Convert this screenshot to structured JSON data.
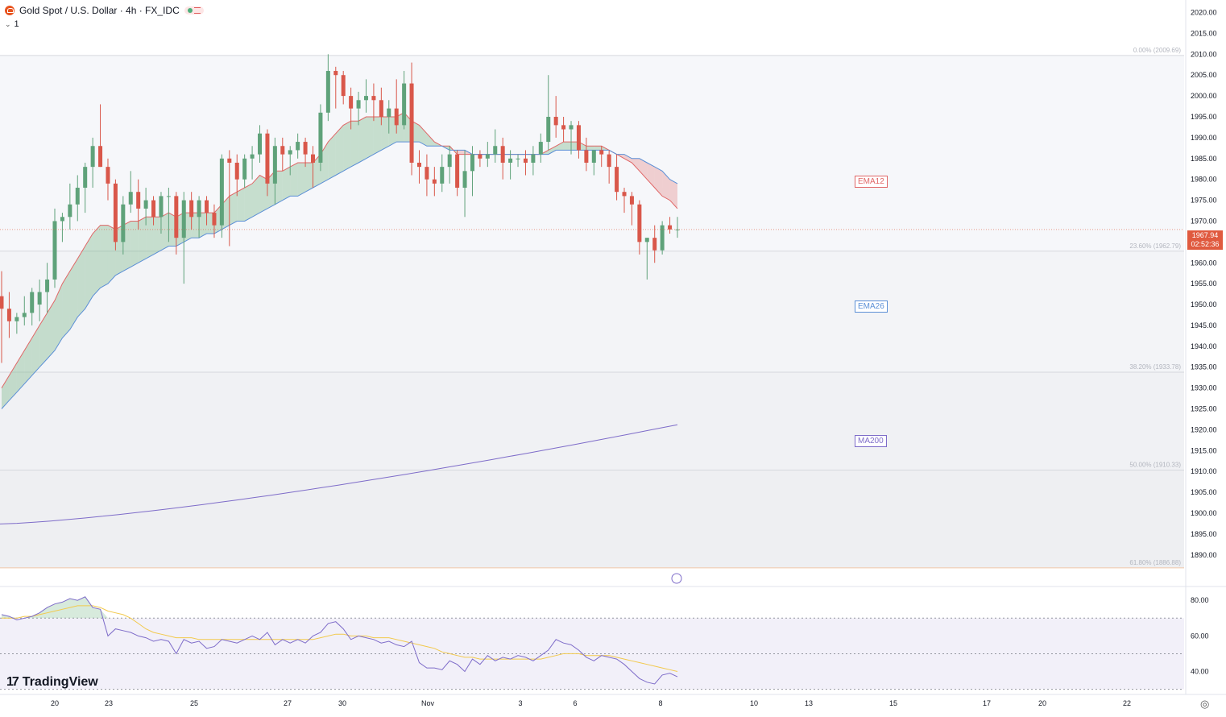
{
  "header": {
    "symbol_title": "Gold Spot / U.S. Dollar · 4h · FX_IDC",
    "indicator_count": "1"
  },
  "colors": {
    "up": "#5fa27a",
    "down": "#d9574a",
    "ema12": "#e06666",
    "ema26": "#5b8fd6",
    "ma200": "#7e6cc9",
    "rsi": "#7e6cc9",
    "rsi_ma": "#f2c94c",
    "current_price_bg": "#e05a3f"
  },
  "tags": {
    "ema12": "EMA12",
    "ema26": "EMA26",
    "ma200": "MA200"
  },
  "price_tag": {
    "price": "1967.94",
    "countdown": "02:52:36"
  },
  "branding": "TradingView",
  "chart_data": {
    "type": "candlestick",
    "price_axis": {
      "ylim": [
        1883,
        2023
      ],
      "ticks": [
        "2020.00",
        "2015.00",
        "2010.00",
        "2005.00",
        "2000.00",
        "1995.00",
        "1990.00",
        "1985.00",
        "1980.00",
        "1975.00",
        "1970.00",
        "1965.00",
        "1960.00",
        "1955.00",
        "1950.00",
        "1945.00",
        "1940.00",
        "1935.00",
        "1930.00",
        "1925.00",
        "1920.00",
        "1915.00",
        "1910.00",
        "1905.00",
        "1900.00",
        "1895.00",
        "1890.00"
      ]
    },
    "time_axis": {
      "labels": [
        "20",
        "23",
        "25",
        "27",
        "30",
        "Nov",
        "3",
        "6",
        "8",
        "10",
        "13",
        "15",
        "17",
        "20",
        "22"
      ]
    },
    "fibonacci": [
      {
        "label": "0.00% (2009.69)",
        "price": 2009.69
      },
      {
        "label": "23.60% (1962.79)",
        "price": 1962.79
      },
      {
        "label": "38.20% (1933.78)",
        "price": 1933.78
      },
      {
        "label": "50.00% (1910.33)",
        "price": 1910.33
      },
      {
        "label": "61.80% (1886.88)",
        "price": 1886.88
      }
    ],
    "candles": [
      [
        1952,
        1958,
        1936,
        1949
      ],
      [
        1949,
        1953,
        1942,
        1946
      ],
      [
        1946,
        1948,
        1943,
        1947
      ],
      [
        1947,
        1952,
        1945,
        1948
      ],
      [
        1948,
        1954,
        1945,
        1953
      ],
      [
        1950,
        1956,
        1946,
        1953
      ],
      [
        1953,
        1960,
        1948,
        1956
      ],
      [
        1956,
        1973,
        1954,
        1970
      ],
      [
        1970,
        1972,
        1965,
        1971
      ],
      [
        1971,
        1979,
        1968,
        1974
      ],
      [
        1974,
        1981,
        1970,
        1978
      ],
      [
        1978,
        1984,
        1972,
        1983
      ],
      [
        1983,
        1990,
        1978,
        1988
      ],
      [
        1988,
        1998,
        1983,
        1983
      ],
      [
        1983,
        1985,
        1975,
        1979
      ],
      [
        1979,
        1980,
        1963,
        1965
      ],
      [
        1965,
        1976,
        1962,
        1974
      ],
      [
        1974,
        1982,
        1972,
        1977
      ],
      [
        1977,
        1980,
        1968,
        1973
      ],
      [
        1973,
        1978,
        1969,
        1975
      ],
      [
        1975,
        1976,
        1969,
        1971
      ],
      [
        1971,
        1977,
        1967,
        1976
      ],
      [
        1976,
        1978,
        1965,
        1976
      ],
      [
        1976,
        1977,
        1962,
        1966
      ],
      [
        1966,
        1977,
        1955,
        1975
      ],
      [
        1975,
        1977,
        1968,
        1971
      ],
      [
        1971,
        1976,
        1966,
        1975
      ],
      [
        1975,
        1976,
        1969,
        1972
      ],
      [
        1972,
        1974,
        1966,
        1969
      ],
      [
        1969,
        1986,
        1966,
        1985
      ],
      [
        1985,
        1987,
        1964,
        1984
      ],
      [
        1984,
        1986,
        1976,
        1980
      ],
      [
        1980,
        1986,
        1978,
        1985
      ],
      [
        1985,
        1988,
        1980,
        1986
      ],
      [
        1986,
        1993,
        1984,
        1991
      ],
      [
        1991,
        1992,
        1976,
        1979
      ],
      [
        1979,
        1990,
        1974,
        1988
      ],
      [
        1988,
        1990,
        1982,
        1986
      ],
      [
        1986,
        1988,
        1981,
        1987
      ],
      [
        1987,
        1991,
        1985,
        1989
      ],
      [
        1989,
        1990,
        1983,
        1986
      ],
      [
        1986,
        1988,
        1978,
        1984
      ],
      [
        1984,
        1998,
        1982,
        1996
      ],
      [
        1996,
        2010,
        1994,
        2006
      ],
      [
        2006,
        2007,
        1997,
        2005
      ],
      [
        2005,
        2006,
        1998,
        2000
      ],
      [
        2000,
        2002,
        1992,
        1997
      ],
      [
        1997,
        2001,
        1993,
        1999
      ],
      [
        1999,
        2004,
        1996,
        2000
      ],
      [
        2000,
        2003,
        1994,
        1999
      ],
      [
        1999,
        2002,
        1993,
        1995
      ],
      [
        1995,
        1999,
        1991,
        1997
      ],
      [
        1997,
        2004,
        1991,
        1993
      ],
      [
        1993,
        2006,
        1992,
        2003
      ],
      [
        2003,
        2008,
        1981,
        1984
      ],
      [
        1984,
        1987,
        1979,
        1983
      ],
      [
        1983,
        1986,
        1976,
        1980
      ],
      [
        1980,
        1983,
        1976,
        1979
      ],
      [
        1979,
        1986,
        1977,
        1983
      ],
      [
        1983,
        1988,
        1979,
        1986
      ],
      [
        1986,
        1987,
        1976,
        1978
      ],
      [
        1978,
        1987,
        1971,
        1982
      ],
      [
        1982,
        1988,
        1976,
        1986
      ],
      [
        1986,
        1987,
        1983,
        1985
      ],
      [
        1985,
        1989,
        1983,
        1986
      ],
      [
        1986,
        1992,
        1984,
        1988
      ],
      [
        1988,
        1990,
        1980,
        1984
      ],
      [
        1984,
        1987,
        1980,
        1985
      ],
      [
        1985,
        1986,
        1983,
        1985
      ],
      [
        1985,
        1987,
        1981,
        1984
      ],
      [
        1984,
        1988,
        1981,
        1986
      ],
      [
        1986,
        1991,
        1984,
        1989
      ],
      [
        1989,
        2005,
        1987,
        1995
      ],
      [
        1995,
        2000,
        1990,
        1993
      ],
      [
        1993,
        1995,
        1989,
        1992
      ],
      [
        1992,
        1994,
        1986,
        1993
      ],
      [
        1993,
        1994,
        1985,
        1987
      ],
      [
        1987,
        1990,
        1982,
        1984
      ],
      [
        1984,
        1987,
        1981,
        1987
      ],
      [
        1987,
        1988,
        1983,
        1986
      ],
      [
        1986,
        1987,
        1979,
        1983
      ],
      [
        1983,
        1986,
        1975,
        1977
      ],
      [
        1977,
        1978,
        1972,
        1976
      ],
      [
        1976,
        1977,
        1969,
        1974
      ],
      [
        1974,
        1975,
        1962,
        1965
      ],
      [
        1965,
        1966,
        1956,
        1966
      ],
      [
        1966,
        1969,
        1960,
        1963
      ],
      [
        1963,
        1970,
        1962,
        1969
      ],
      [
        1969,
        1971,
        1967,
        1968
      ],
      [
        1968,
        1971,
        1966,
        1968
      ]
    ],
    "ema12": [
      1930,
      1933,
      1936,
      1939,
      1942,
      1945,
      1948,
      1951,
      1955,
      1958,
      1961,
      1964,
      1967,
      1969,
      1969,
      1968,
      1969,
      1970,
      1970,
      1971,
      1971,
      1971,
      1972,
      1971,
      1972,
      1972,
      1972,
      1972,
      1972,
      1974,
      1976,
      1977,
      1978,
      1979,
      1981,
      1980,
      1982,
      1982,
      1983,
      1984,
      1984,
      1984,
      1986,
      1989,
      1991,
      1993,
      1994,
      1994,
      1995,
      1995,
      1995,
      1995,
      1995,
      1996,
      1994,
      1993,
      1991,
      1989,
      1988,
      1988,
      1986,
      1986,
      1986,
      1986,
      1986,
      1986,
      1986,
      1986,
      1986,
      1986,
      1986,
      1986,
      1987,
      1988,
      1989,
      1989,
      1989,
      1988,
      1988,
      1988,
      1987,
      1986,
      1985,
      1984,
      1982,
      1980,
      1978,
      1976,
      1975,
      1973
    ],
    "ema26": [
      1925,
      1927,
      1929,
      1931,
      1933,
      1935,
      1937,
      1939,
      1942,
      1944,
      1947,
      1949,
      1952,
      1954,
      1955,
      1957,
      1958,
      1959,
      1960,
      1961,
      1962,
      1963,
      1964,
      1964,
      1965,
      1966,
      1966,
      1967,
      1967,
      1968,
      1969,
      1970,
      1970,
      1971,
      1972,
      1973,
      1974,
      1975,
      1976,
      1976,
      1977,
      1978,
      1979,
      1980,
      1981,
      1982,
      1983,
      1984,
      1985,
      1986,
      1987,
      1988,
      1989,
      1989,
      1989,
      1989,
      1988,
      1988,
      1988,
      1987,
      1987,
      1987,
      1986,
      1986,
      1986,
      1986,
      1986,
      1986,
      1986,
      1986,
      1986,
      1986,
      1986,
      1987,
      1987,
      1987,
      1987,
      1987,
      1987,
      1987,
      1987,
      1986,
      1986,
      1985,
      1985,
      1984,
      1983,
      1982,
      1980,
      1979
    ],
    "ma200": {
      "start": 1897.4,
      "end": 1921.2
    },
    "rsi": {
      "ylim": [
        28,
        86
      ],
      "ticks": [
        "80.00",
        "60.00",
        "40.00"
      ],
      "bands": [
        70,
        50,
        30
      ],
      "values": [
        72,
        71,
        69,
        70,
        71,
        73,
        76,
        78,
        79,
        81,
        80,
        82,
        76,
        75,
        60,
        64,
        63,
        62,
        60,
        59,
        57,
        58,
        57,
        50,
        58,
        56,
        57,
        53,
        54,
        58,
        57,
        56,
        58,
        60,
        58,
        62,
        55,
        58,
        56,
        58,
        56,
        60,
        62,
        67,
        68,
        64,
        58,
        60,
        59,
        58,
        56,
        57,
        55,
        54,
        57,
        45,
        42,
        42,
        41,
        46,
        44,
        40,
        47,
        44,
        49,
        46,
        48,
        47,
        49,
        48,
        46,
        49,
        52,
        58,
        56,
        55,
        52,
        48,
        46,
        49,
        48,
        47,
        44,
        40,
        36,
        34,
        33,
        38,
        39,
        37
      ],
      "ma_values": [
        70,
        70,
        70,
        71,
        71,
        72,
        73,
        74,
        75,
        76,
        77,
        77,
        77,
        76,
        74,
        73,
        72,
        70,
        67,
        64,
        62,
        61,
        60,
        59,
        59,
        59,
        58,
        58,
        58,
        58,
        58,
        58,
        58,
        58,
        58,
        58,
        58,
        58,
        58,
        58,
        58,
        58,
        59,
        60,
        61,
        61,
        60,
        60,
        60,
        59,
        59,
        59,
        58,
        57,
        56,
        55,
        54,
        53,
        51,
        50,
        49,
        48,
        48,
        47,
        47,
        47,
        47,
        47,
        47,
        47,
        47,
        47,
        48,
        49,
        50,
        50,
        50,
        49,
        49,
        49,
        49,
        48,
        47,
        46,
        45,
        44,
        43,
        42,
        41,
        40
      ]
    }
  }
}
